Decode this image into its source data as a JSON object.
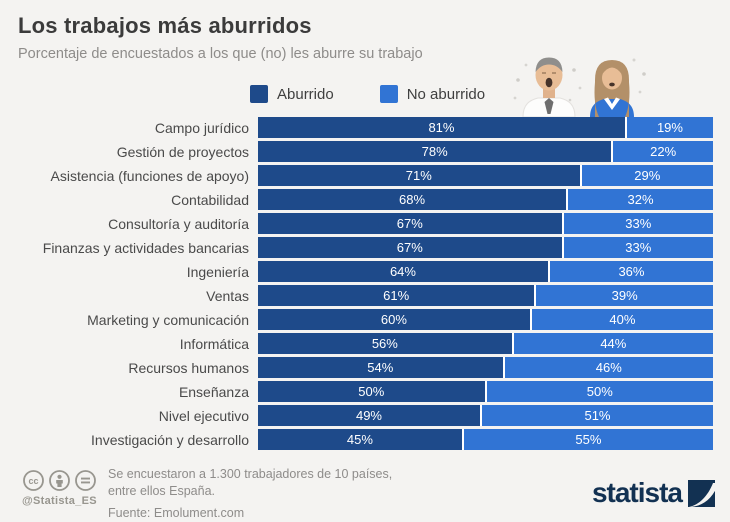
{
  "header": {
    "title": "Los trabajos más aburridos",
    "subtitle": "Porcentaje de encuestados a los que (no) les aburre su trabajo"
  },
  "legend": [
    {
      "label": "Aburrido",
      "color": "#1e4a8a"
    },
    {
      "label": "No aburrido",
      "color": "#3174d4"
    }
  ],
  "chart_data": {
    "type": "bar",
    "orientation": "horizontal",
    "stacked": true,
    "value_suffix": "%",
    "xlim": [
      0,
      100
    ],
    "categories": [
      "Campo jurídico",
      "Gestión de proyectos",
      "Asistencia (funciones de apoyo)",
      "Contabilidad",
      "Consultoría y auditoría",
      "Finanzas y actividades bancarias",
      "Ingeniería",
      "Ventas",
      "Marketing y comunicación",
      "Informática",
      "Recursos humanos",
      "Enseñanza",
      "Nivel ejecutivo",
      "Investigación y desarrollo"
    ],
    "series": [
      {
        "name": "Aburrido",
        "color": "#1e4a8a",
        "values": [
          81,
          78,
          71,
          68,
          67,
          67,
          64,
          61,
          60,
          56,
          54,
          50,
          49,
          45
        ]
      },
      {
        "name": "No aburrido",
        "color": "#3174d4",
        "values": [
          19,
          22,
          29,
          32,
          33,
          33,
          36,
          39,
          40,
          44,
          46,
          50,
          51,
          55
        ]
      }
    ]
  },
  "footer": {
    "note_line1": "Se encuestaron a 1.300 trabajadores de 10 países,",
    "note_line2": "entre ellos España.",
    "source": "Fuente: Emolument.com",
    "credit": "@Statista_ES",
    "brand": "statista",
    "license_icons": [
      "cc-icon",
      "attribution-icon",
      "no-derivatives-icon"
    ]
  },
  "colors": {
    "background": "#f4f3f1",
    "title": "#3b3b3b",
    "muted_text": "#8e8c8a",
    "bar_dark": "#1e4a8a",
    "bar_light": "#3174d4",
    "brand_navy": "#123152"
  }
}
